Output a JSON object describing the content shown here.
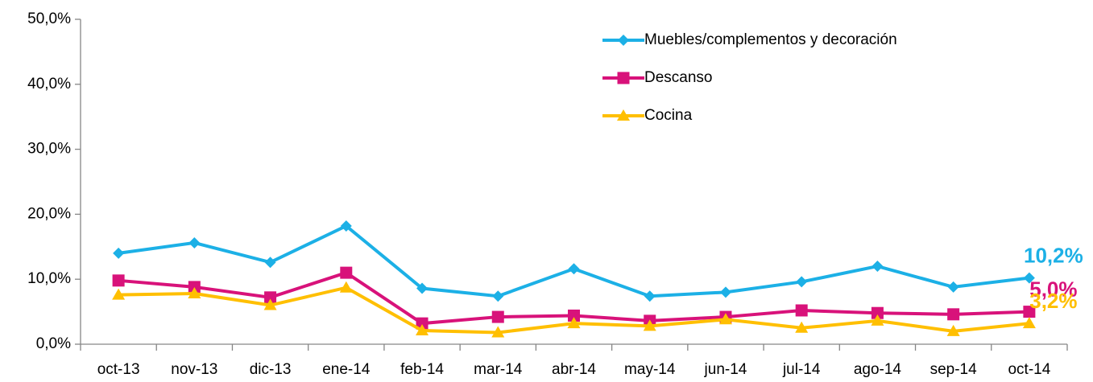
{
  "chart_data": {
    "type": "line",
    "categories": [
      "oct-13",
      "nov-13",
      "dic-13",
      "ene-14",
      "feb-14",
      "mar-14",
      "abr-14",
      "may-14",
      "jun-14",
      "jul-14",
      "ago-14",
      "sep-14",
      "oct-14"
    ],
    "series": [
      {
        "name": "Muebles/complementos y decoración",
        "color": "#1cb0e6",
        "marker": "diamond",
        "values": [
          14.0,
          15.6,
          12.6,
          18.2,
          8.6,
          7.4,
          11.6,
          7.4,
          8.0,
          9.6,
          12.0,
          8.8,
          10.2
        ],
        "value_labels": [
          null,
          null,
          null,
          null,
          null,
          null,
          null,
          null,
          null,
          null,
          null,
          null,
          "10,2%"
        ]
      },
      {
        "name": "Descanso",
        "color": "#d8127a",
        "marker": "square",
        "values": [
          9.8,
          8.8,
          7.2,
          11.0,
          3.2,
          4.2,
          4.4,
          3.6,
          4.2,
          5.2,
          4.8,
          4.6,
          5.0
        ],
        "value_labels": [
          null,
          null,
          null,
          null,
          null,
          null,
          null,
          null,
          null,
          null,
          null,
          null,
          "5,0%"
        ]
      },
      {
        "name": "Cocina",
        "color": "#ffbf00",
        "marker": "triangle",
        "values": [
          7.6,
          7.8,
          6.0,
          8.7,
          2.1,
          1.8,
          3.2,
          2.8,
          3.8,
          2.5,
          3.6,
          2.0,
          3.2
        ],
        "value_labels": [
          null,
          null,
          null,
          null,
          null,
          null,
          null,
          null,
          null,
          null,
          null,
          null,
          "3,2%"
        ]
      }
    ],
    "ylim": [
      0,
      50
    ],
    "yticks": [
      {
        "value": 0,
        "label": "0,0%"
      },
      {
        "value": 10,
        "label": "10,0%"
      },
      {
        "value": 20,
        "label": "20,0%"
      },
      {
        "value": 30,
        "label": "30,0%"
      },
      {
        "value": 40,
        "label": "40,0%"
      },
      {
        "value": 50,
        "label": "50,0%"
      }
    ],
    "grid": false,
    "legend": "top-right"
  }
}
